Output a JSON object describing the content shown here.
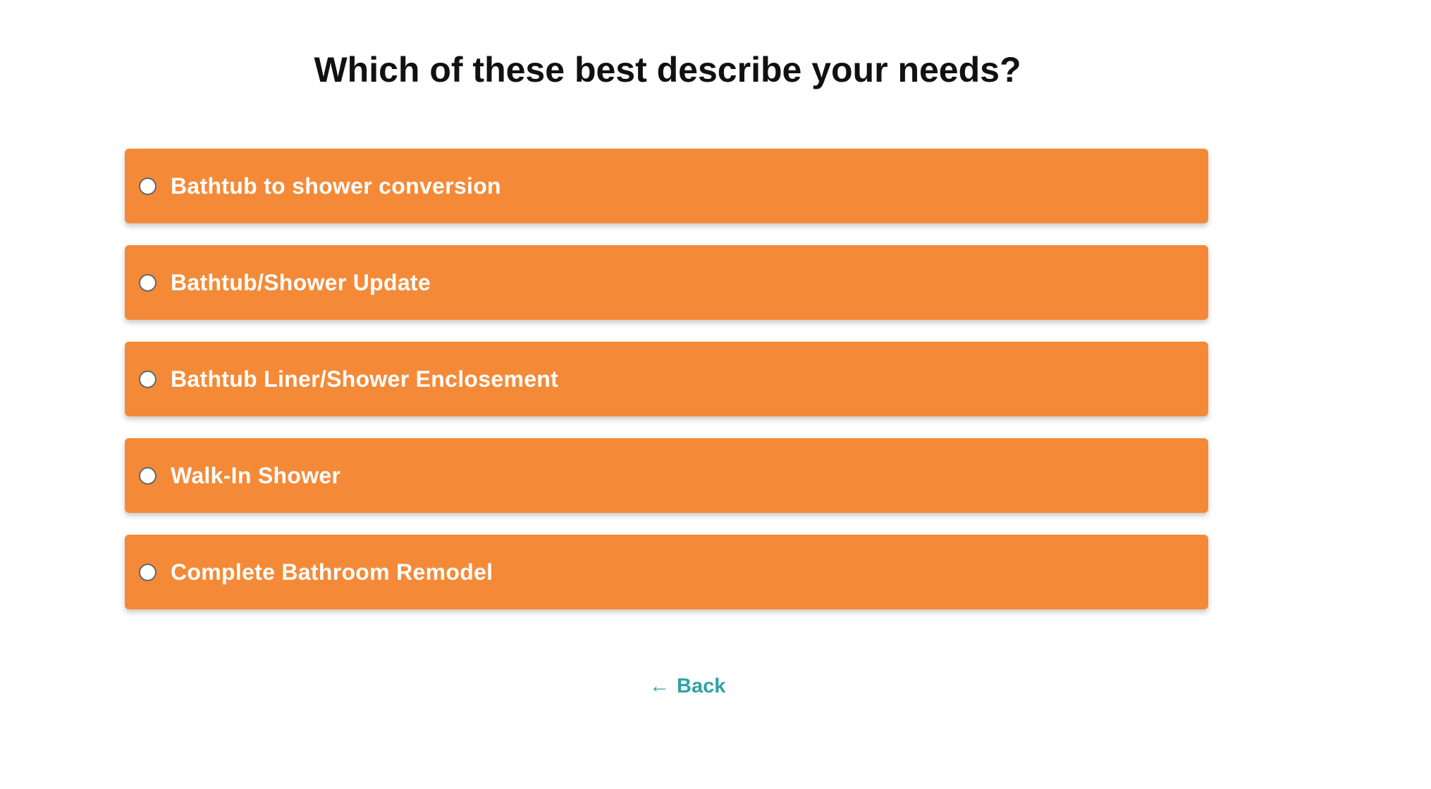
{
  "question": "Which of these best describe your needs?",
  "options": [
    {
      "label": "Bathtub to shower conversion",
      "selected": false
    },
    {
      "label": "Bathtub/Shower Update",
      "selected": false
    },
    {
      "label": "Bathtub Liner/Shower Enclosement",
      "selected": false
    },
    {
      "label": "Walk-In Shower",
      "selected": false
    },
    {
      "label": "Complete Bathroom Remodel",
      "selected": false
    }
  ],
  "back": {
    "arrow": "←",
    "label": "Back"
  },
  "colors": {
    "option_bg": "#f48a38",
    "back_link": "#2ea3a3"
  }
}
